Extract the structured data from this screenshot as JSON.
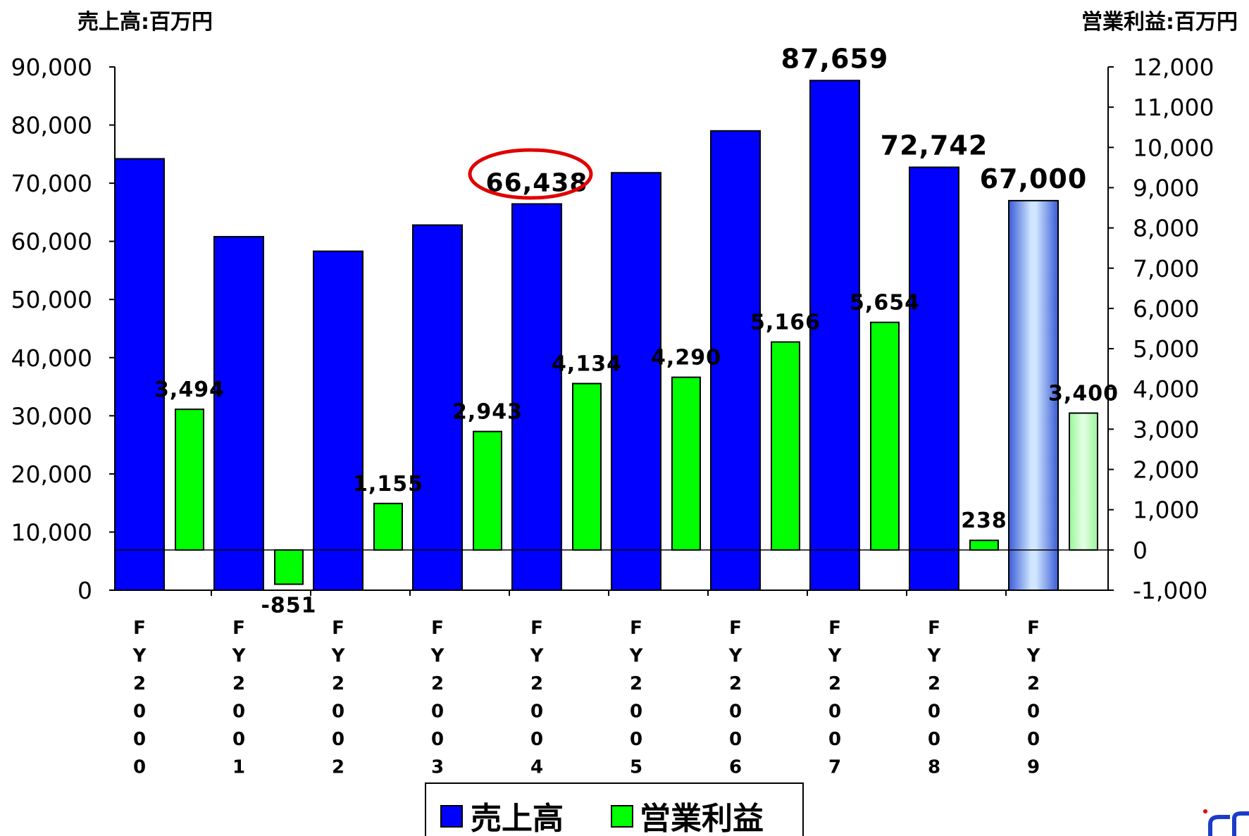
{
  "chart_data": {
    "type": "bar",
    "left_axis_label": "売上高:百万円",
    "right_axis_label": "営業利益:百万円",
    "categories": [
      "FY2000",
      "FY2001",
      "FY2002",
      "FY2003",
      "FY2004",
      "FY2005",
      "FY2006",
      "FY2007",
      "FY2008",
      "FY2009"
    ],
    "left_ticks": [
      "90,000",
      "80,000",
      "70,000",
      "60,000",
      "50,000",
      "40,000",
      "30,000",
      "20,000",
      "10,000",
      "0"
    ],
    "right_ticks": [
      "12,000",
      "11,000",
      "10,000",
      "9,000",
      "8,000",
      "7,000",
      "6,000",
      "5,000",
      "4,000",
      "3,000",
      "2,000",
      "1,000",
      "0",
      "-1,000"
    ],
    "left_ylim": [
      0,
      90000
    ],
    "right_ylim": [
      -1000,
      12000
    ],
    "series": [
      {
        "name": "売上高",
        "axis": "left",
        "color": "#0000ff",
        "values": [
          74200,
          60800,
          58300,
          62800,
          66438,
          71800,
          79000,
          87659,
          72742,
          67000
        ],
        "labels": [
          "",
          "",
          "",
          "",
          "66,438",
          "",
          "",
          "87,659",
          "72,742",
          "67,000"
        ]
      },
      {
        "name": "営業利益",
        "axis": "right",
        "color": "#00ff00",
        "values": [
          3494,
          -851,
          1155,
          2943,
          4134,
          4290,
          5166,
          5654,
          238,
          3400
        ],
        "labels": [
          "3,494",
          "-851",
          "1,155",
          "2,943",
          "4,134",
          "4,290",
          "5,166",
          "5,654",
          "238",
          "3,400"
        ]
      }
    ],
    "forecast_index": 9,
    "highlight": "66,438",
    "negative_color": "#ff0000",
    "legend": [
      "売上高",
      "営業利益"
    ],
    "legend_position": "bottom",
    "grid": false
  }
}
